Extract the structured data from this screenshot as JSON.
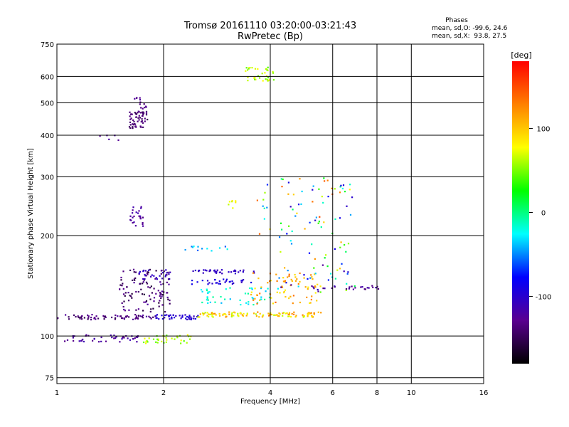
{
  "chart_data": {
    "type": "scatter",
    "title": "Tromsø 20161110 03:20:00-03:21:43",
    "subtitle": "RwPretec (Bp)",
    "xlabel": "Frequency [MHz]",
    "ylabel": "Stationary phase Virtual Height [km]",
    "x_scale": "log2",
    "y_scale": "log",
    "xlim": [
      1,
      16
    ],
    "ylim": [
      72,
      750
    ],
    "x_ticks": [
      1,
      2,
      4,
      6,
      8,
      10,
      16
    ],
    "x_tick_labels": [
      "1",
      "2",
      "4",
      "6",
      "8",
      "10",
      "16"
    ],
    "y_ticks": [
      75,
      100,
      200,
      300,
      400,
      500,
      600,
      750
    ],
    "y_tick_labels": [
      "75",
      "100",
      "200",
      "300",
      "400",
      "500",
      "600",
      "750"
    ],
    "grid": true,
    "colorbar": {
      "label": "[deg]",
      "range": [
        -180,
        180
      ],
      "ticks": [
        100,
        0,
        -100
      ],
      "tick_labels": [
        "100",
        "0",
        "-100"
      ],
      "colors": [
        "#000000",
        "#5a0090",
        "#0000ff",
        "#00ffff",
        "#00ff00",
        "#ffff00",
        "#ff8000",
        "#ff0000"
      ]
    },
    "stats": {
      "header": "Phases",
      "line_o": "mean, sd,O: -99.6, 24.6",
      "line_x": "mean, sd,X:  93.8, 27.5"
    },
    "clusters": [
      {
        "x": [
          1.0,
          1.9
        ],
        "y": [
          112,
          116
        ],
        "phase": [
          -120,
          -150
        ],
        "n": 70
      },
      {
        "x": [
          1.05,
          1.7
        ],
        "y": [
          96,
          101
        ],
        "phase": [
          -110,
          -130
        ],
        "n": 45
      },
      {
        "x": [
          1.75,
          2.4
        ],
        "y": [
          95,
          101
        ],
        "phase": [
          40,
          80
        ],
        "n": 35
      },
      {
        "x": [
          1.9,
          2.5
        ],
        "y": [
          112,
          116
        ],
        "phase": [
          -90,
          -110
        ],
        "n": 45
      },
      {
        "x": [
          2.5,
          5.6
        ],
        "y": [
          114,
          118
        ],
        "phase": [
          60,
          130
        ],
        "n": 110
      },
      {
        "x": [
          1.5,
          2.1
        ],
        "y": [
          118,
          160
        ],
        "phase": [
          -120,
          -160
        ],
        "n": 110
      },
      {
        "x": [
          1.7,
          2.1
        ],
        "y": [
          148,
          158
        ],
        "phase": [
          -100,
          -110
        ],
        "n": 25
      },
      {
        "x": [
          2.4,
          3.6
        ],
        "y": [
          154,
          158
        ],
        "phase": [
          -100,
          -110
        ],
        "n": 35
      },
      {
        "x": [
          2.4,
          3.6
        ],
        "y": [
          143,
          148
        ],
        "phase": [
          -80,
          -110
        ],
        "n": 30
      },
      {
        "x": [
          2.5,
          4.0
        ],
        "y": [
          124,
          140
        ],
        "phase": [
          -40,
          0
        ],
        "n": 45
      },
      {
        "x": [
          3.5,
          5.5
        ],
        "y": [
          125,
          155
        ],
        "phase": [
          80,
          140
        ],
        "n": 70
      },
      {
        "x": [
          4.2,
          7.0
        ],
        "y": [
          135,
          165
        ],
        "phase": [
          -130,
          110
        ],
        "n": 35
      },
      {
        "x": [
          5.0,
          8.5
        ],
        "y": [
          138,
          142
        ],
        "phase": [
          -140,
          -110
        ],
        "n": 25
      },
      {
        "x": [
          1.6,
          1.8
        ],
        "y": [
          420,
          470
        ],
        "phase": [
          -150,
          -130
        ],
        "n": 55
      },
      {
        "x": [
          1.65,
          1.8
        ],
        "y": [
          470,
          520
        ],
        "phase": [
          -120,
          -140
        ],
        "n": 15
      },
      {
        "x": [
          3.4,
          4.1
        ],
        "y": [
          580,
          640
        ],
        "phase": [
          40,
          80
        ],
        "n": 35
      },
      {
        "x": [
          1.6,
          1.75
        ],
        "y": [
          210,
          245
        ],
        "phase": [
          -110,
          -130
        ],
        "n": 25
      },
      {
        "x": [
          3.6,
          6.9
        ],
        "y": [
          170,
          300
        ],
        "phase": [
          -110,
          150
        ],
        "n": 80
      },
      {
        "x": [
          2.3,
          3.1
        ],
        "y": [
          180,
          186
        ],
        "phase": [
          -20,
          -60
        ],
        "n": 12
      },
      {
        "x": [
          3.0,
          3.2
        ],
        "y": [
          240,
          255
        ],
        "phase": [
          60,
          90
        ],
        "n": 8
      },
      {
        "x": [
          1.3,
          1.5
        ],
        "y": [
          385,
          400
        ],
        "phase": [
          -120,
          -130
        ],
        "n": 5
      }
    ]
  }
}
